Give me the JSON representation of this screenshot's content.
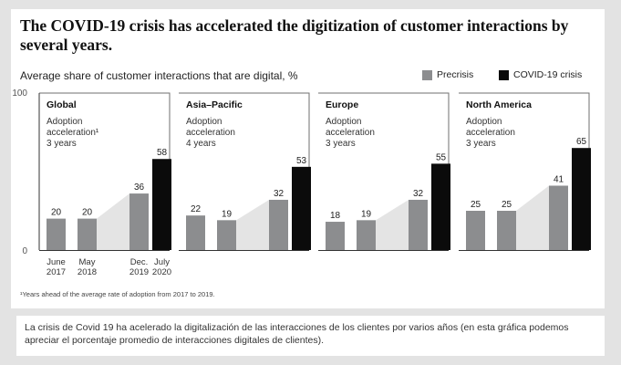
{
  "header": {
    "title": "The COVID-19 crisis has accelerated the digitization of customer interactions by several years.",
    "subtitle": "Average share of customer interactions that are digital, %"
  },
  "legend": [
    {
      "label": "Precrisis",
      "color": "#8c8d8f"
    },
    {
      "label": "COVID-19 crisis",
      "color": "#0b0b0b"
    }
  ],
  "colors": {
    "precrisis": "#8c8d8f",
    "covid": "#0b0b0b",
    "trend_area": "#e4e4e4",
    "panel_border": "#6f6f6f"
  },
  "footnote": "¹Years ahead of the average rate of adoption from 2017 to 2019.",
  "caption": "La crisis de Covid 19 ha acelerado la digitalización de las interacciones de los clientes por varios años (en esta gráfica podemos apreciar el porcentaje promedio de interacciones digitales de clientes).",
  "chart_data": {
    "type": "bar",
    "title": "The COVID-19 crisis has accelerated the digitization of customer interactions by several years.",
    "ylabel": "Average share of customer interactions that are digital, %",
    "ylim": [
      0,
      100
    ],
    "yticks": [
      "100",
      "0"
    ],
    "x_ticks": [
      {
        "top": "June",
        "bottom": "2017"
      },
      {
        "top": "May",
        "bottom": "2018"
      },
      {
        "top": "Dec.",
        "bottom": "2019"
      },
      {
        "top": "July",
        "bottom": "2020"
      }
    ],
    "legend_position": "top-right",
    "series_names": [
      "Precrisis",
      "COVID-19 crisis"
    ],
    "panels": [
      {
        "region": "Global",
        "adoption_label": "Adoption\nacceleration¹",
        "adoption_years": "3 years",
        "values": [
          20,
          20,
          36,
          58
        ]
      },
      {
        "region": "Asia–Pacific",
        "adoption_label": "Adoption\nacceleration",
        "adoption_years": "4 years",
        "values": [
          22,
          19,
          32,
          53
        ]
      },
      {
        "region": "Europe",
        "adoption_label": "Adoption\nacceleration",
        "adoption_years": "3 years",
        "values": [
          18,
          19,
          32,
          55
        ]
      },
      {
        "region": "North America",
        "adoption_label": "Adoption\nacceleration",
        "adoption_years": "3 years",
        "values": [
          25,
          25,
          41,
          65
        ]
      }
    ]
  }
}
